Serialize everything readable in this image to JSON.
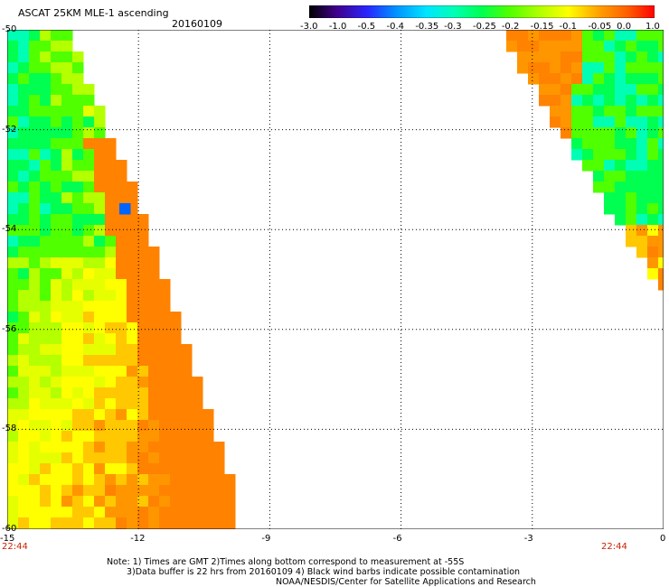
{
  "header": {
    "title": "ASCAT 25KM MLE-1 ascending",
    "date": "20160109"
  },
  "colorbar": {
    "labels": [
      "-3.0",
      "-1.0",
      "-0.5",
      "-0.4",
      "-0.35",
      "-0.3",
      "-0.25",
      "-0.2",
      "-0.15",
      "-0.1",
      "-0.05",
      "0.0",
      "1.0"
    ],
    "colors": [
      "#000000",
      "#40008c",
      "#2828ff",
      "#0090ff",
      "#00e6ff",
      "#00ffb4",
      "#00ff50",
      "#50ff00",
      "#b4ff00",
      "#ffff00",
      "#ffa000",
      "#ff6000",
      "#ff0000"
    ]
  },
  "map": {
    "lon_ticks": [
      "-15",
      "-12",
      "-9",
      "-6",
      "-3",
      "0"
    ],
    "lat_ticks": [
      "-50",
      "-52",
      "-54",
      "-56",
      "-58",
      "-60"
    ],
    "lon_range": [
      -15,
      0
    ],
    "lat_range": [
      -50,
      -60
    ],
    "grid": "dotted"
  },
  "times": {
    "left": "22:44",
    "right": "22:44"
  },
  "notes": {
    "line1": "Note: 1) Times are GMT 2)Times along bottom correspond to measurement at -55S",
    "line2": "3)Data buffer is 22 hrs from 20160109 4) Black wind barbs indicate possible contamination",
    "line3": "NOAA/NESDIS/Center for Satellite Applications and Research"
  }
}
